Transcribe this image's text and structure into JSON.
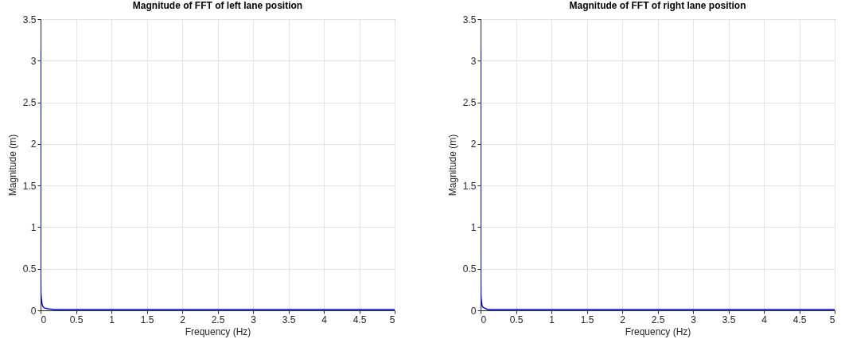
{
  "chart_data": [
    {
      "type": "line",
      "title": "Magnitude of FFT of left lane position",
      "xlabel": "Frequency (Hz)",
      "ylabel": "Magnitude (m)",
      "x": [
        0,
        0.002,
        0.005,
        0.01,
        0.02,
        0.03,
        0.05,
        0.1,
        0.2,
        0.5,
        1,
        2,
        3,
        4,
        5
      ],
      "series": [
        {
          "color": "#0000ff",
          "values": [
            3.15,
            0.5,
            0.2,
            0.15,
            0.08,
            0.05,
            0.03,
            0.02,
            0.01,
            0.01,
            0.01,
            0.01,
            0.01,
            0.01,
            0.01
          ]
        }
      ],
      "xlim": [
        0,
        5
      ],
      "xticks": [
        0,
        0.5,
        1,
        1.5,
        2,
        2.5,
        3,
        3.5,
        4,
        4.5,
        5
      ],
      "ylim": [
        0,
        3.5
      ],
      "yticks": [
        0,
        0.5,
        1,
        1.5,
        2,
        2.5,
        3,
        3.5
      ],
      "grid": true
    },
    {
      "type": "line",
      "title": "Magnitude of FFT of right lane position",
      "xlabel": "Frequency (Hz)",
      "ylabel": "Magnitude (m)",
      "x": [
        0,
        0.002,
        0.005,
        0.01,
        0.02,
        0.03,
        0.05,
        0.1,
        0.2,
        0.5,
        1,
        2,
        3,
        4,
        5
      ],
      "series": [
        {
          "color": "#0000ff",
          "values": [
            3.15,
            0.5,
            0.18,
            0.12,
            0.06,
            0.04,
            0.03,
            0.01,
            0.01,
            0.01,
            0.01,
            0.01,
            0.01,
            0.01,
            0.01
          ]
        }
      ],
      "xlim": [
        0,
        5
      ],
      "xticks": [
        0,
        0.5,
        1,
        1.5,
        2,
        2.5,
        3,
        3.5,
        4,
        4.5,
        5
      ],
      "ylim": [
        0,
        3.5
      ],
      "yticks": [
        0,
        0.5,
        1,
        1.5,
        2,
        2.5,
        3,
        3.5
      ],
      "grid": true
    }
  ]
}
